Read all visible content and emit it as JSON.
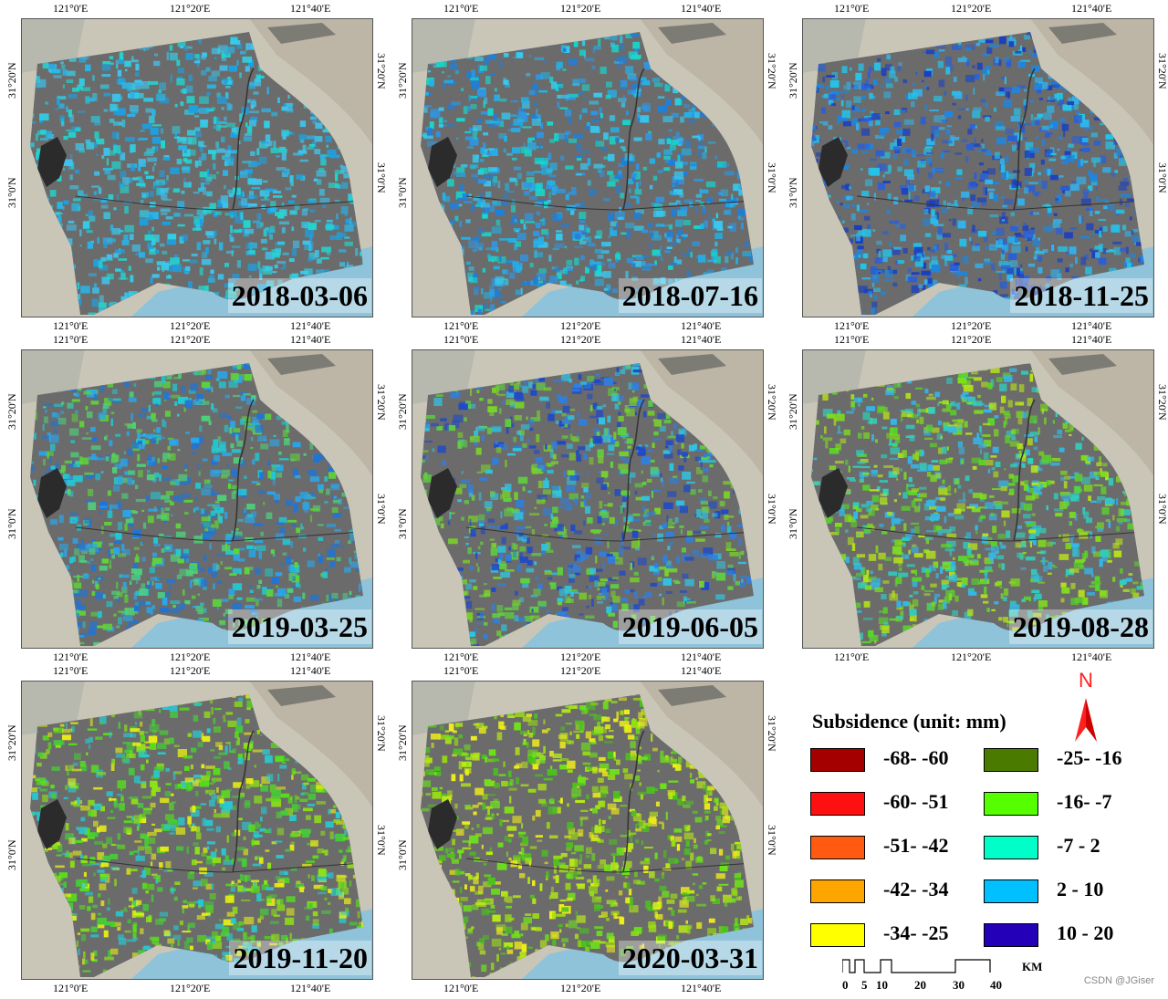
{
  "axes": {
    "x_ticks": [
      "121°0'E",
      "121°20'E",
      "121°40'E"
    ],
    "y_ticks": [
      "31°20'N",
      "31°0'N"
    ]
  },
  "panels": [
    {
      "date": "2018-03-06",
      "palette": [
        "#29b6ea",
        "#3fc4ee",
        "#22d6d0",
        "#1ea0e0",
        "#31cfe6"
      ]
    },
    {
      "date": "2018-07-16",
      "palette": [
        "#23b1ea",
        "#2f96e2",
        "#16d8cc",
        "#1f7fd9",
        "#38c8ef"
      ]
    },
    {
      "date": "2018-11-25",
      "palette": [
        "#1e86e0",
        "#2b5fd6",
        "#31b4ee",
        "#183fc2",
        "#25c3e8"
      ]
    },
    {
      "date": "2019-03-25",
      "palette": [
        "#2aa6ea",
        "#1f74d8",
        "#4fd07a",
        "#22c8d2",
        "#5ed43a"
      ]
    },
    {
      "date": "2019-06-05",
      "palette": [
        "#2f7fe0",
        "#5fd040",
        "#1e49c9",
        "#30c4e2",
        "#7ad22a"
      ]
    },
    {
      "date": "2019-08-28",
      "palette": [
        "#5ad52a",
        "#7fde1c",
        "#33b8ea",
        "#b7e21a",
        "#2fd0c0"
      ]
    },
    {
      "date": "2019-11-20",
      "palette": [
        "#57e01a",
        "#8fe215",
        "#e8ef14",
        "#29c8d0",
        "#48c93a"
      ]
    },
    {
      "date": "2020-03-31",
      "palette": [
        "#6ee21a",
        "#b8ea16",
        "#f2f018",
        "#4cc21e",
        "#9add12"
      ]
    }
  ],
  "legend": {
    "title": "Subsidence (unit: mm)",
    "items": [
      {
        "label": "-68- -60",
        "color": "#a50000"
      },
      {
        "label": "-60- -51",
        "color": "#ff1010"
      },
      {
        "label": "-51- -42",
        "color": "#ff5a10"
      },
      {
        "label": "-42- -34",
        "color": "#ffa500"
      },
      {
        "label": "-34- -25",
        "color": "#ffff00"
      },
      {
        "label": "-25- -16",
        "color": "#4a7a00"
      },
      {
        "label": "-16- -7",
        "color": "#55ff00"
      },
      {
        "label": "-7 - 2",
        "color": "#00ffc8"
      },
      {
        "label": "2 - 10",
        "color": "#00c0ff"
      },
      {
        "label": "10 - 20",
        "color": "#2400b8"
      }
    ],
    "north": "N",
    "scale_ticks": [
      "0",
      "5",
      "10",
      "20",
      "30",
      "40"
    ],
    "scale_unit": "KM"
  },
  "credit": "CSDN @JGiser"
}
